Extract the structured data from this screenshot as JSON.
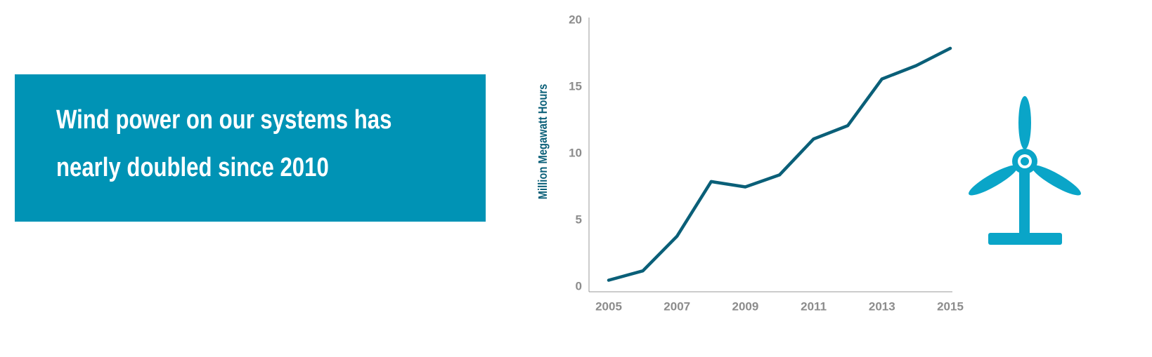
{
  "headline": [
    "Wind power on our systems has",
    "nearly doubled since 2010"
  ],
  "chart_data": {
    "type": "line",
    "ylabel": "Million Megawatt Hours",
    "categories": [
      "2005",
      null,
      "2007",
      null,
      "2009",
      null,
      "2011",
      null,
      "2013",
      null,
      "2015"
    ],
    "values": [
      0.5,
      1.2,
      3.8,
      7.9,
      7.5,
      8.4,
      11.1,
      12.1,
      15.6,
      16.6,
      17.9
    ],
    "color": "#0a5f78",
    "ylim": [
      0,
      20
    ],
    "yticks": [
      0,
      5,
      10,
      15,
      20
    ]
  }
}
